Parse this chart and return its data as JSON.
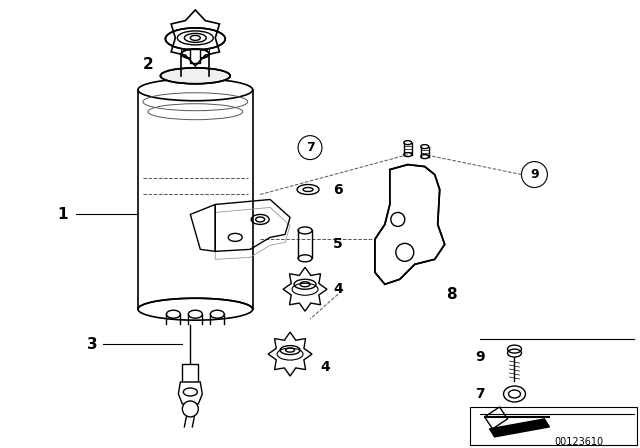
{
  "bg_color": "#ffffff",
  "line_color": "#000000",
  "part_number": "00123610",
  "figsize": [
    6.4,
    4.48
  ],
  "dpi": 100
}
